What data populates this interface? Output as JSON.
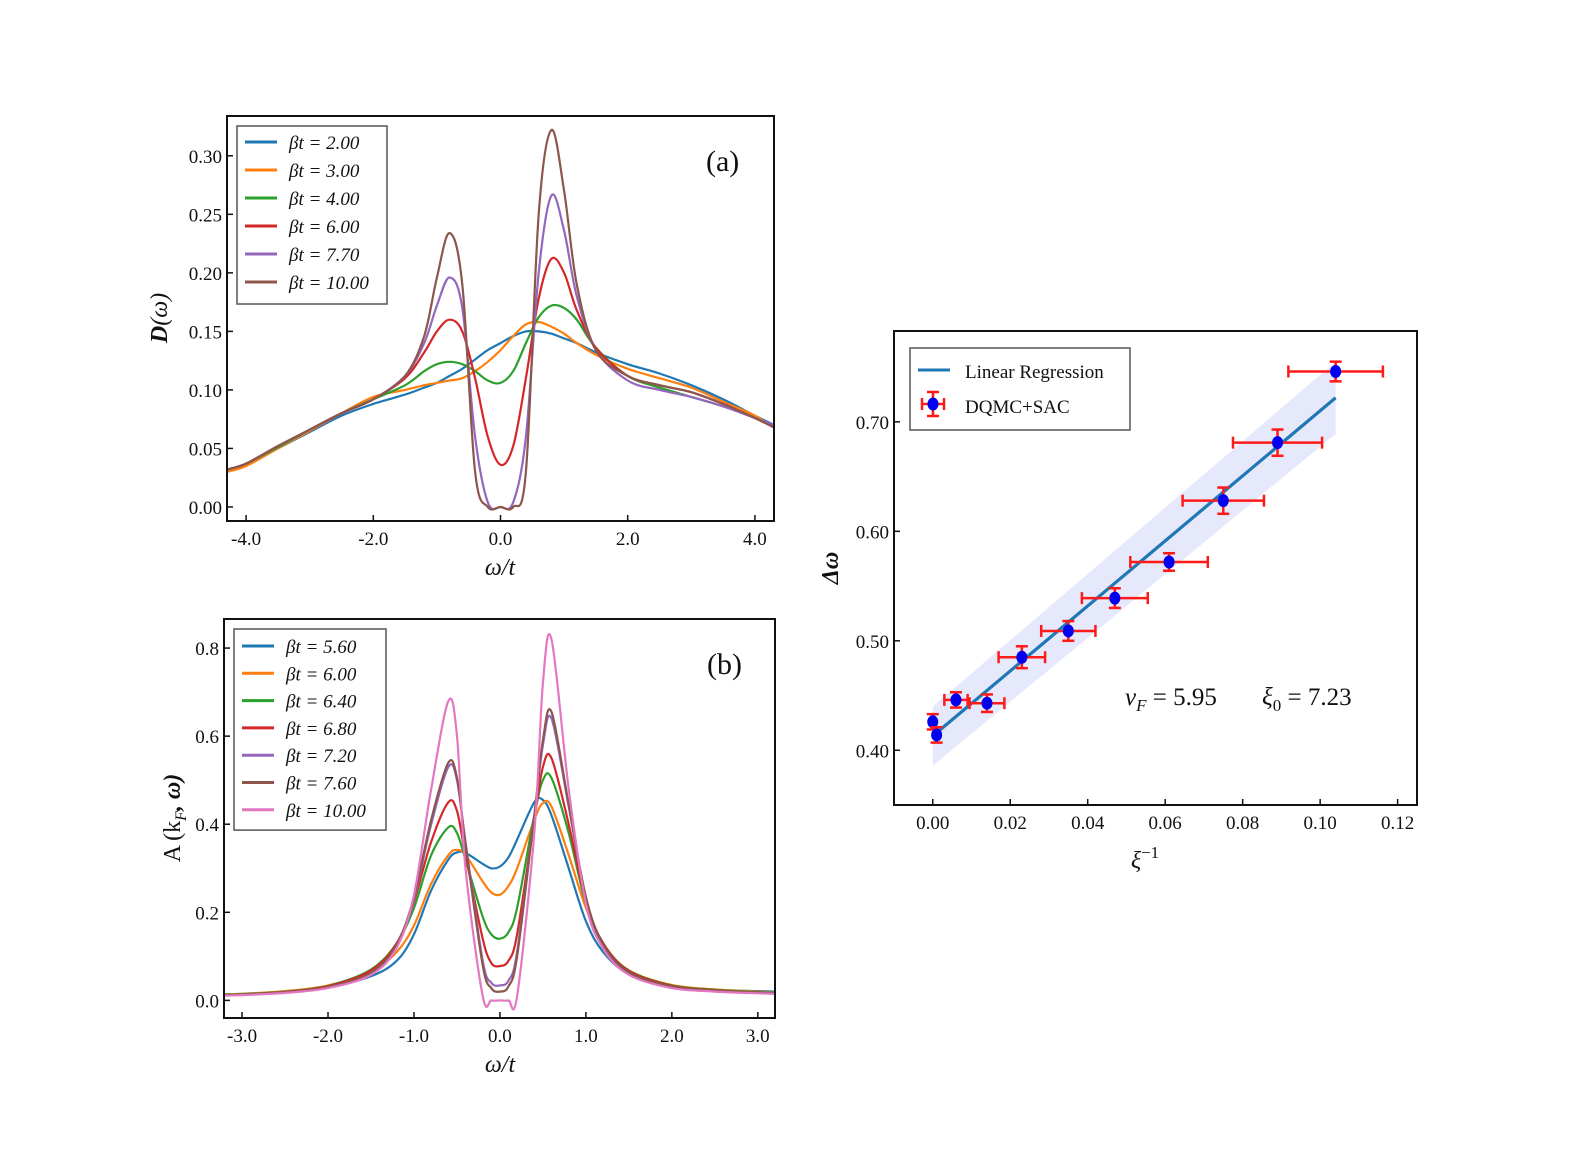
{
  "chart_data": [
    {
      "type": "line",
      "panel_label": "(a)",
      "xlabel": "ω/t",
      "ylabel": "D(ω)",
      "xlim": [
        -4.3,
        4.3
      ],
      "ylim": [
        -0.012,
        0.334
      ],
      "xticks": [
        -4.0,
        -2.0,
        0.0,
        2.0,
        4.0
      ],
      "xtick_labels": [
        "-4.0",
        "-2.0",
        "0.0",
        "2.0",
        "4.0"
      ],
      "yticks": [
        0.0,
        0.05,
        0.1,
        0.15,
        0.2,
        0.25,
        0.3
      ],
      "ytick_labels": [
        "0.00",
        "0.05",
        "0.10",
        "0.15",
        "0.20",
        "0.25",
        "0.30"
      ],
      "legend_position": "top-left",
      "x": [
        -4.3,
        -4,
        -3.5,
        -3,
        -2.5,
        -2,
        -1.5,
        -1.2,
        -1,
        -0.8,
        -0.6,
        -0.4,
        -0.2,
        0,
        0.2,
        0.4,
        0.6,
        0.8,
        1,
        1.2,
        1.5,
        2,
        2.5,
        3,
        3.5,
        4,
        4.3
      ],
      "series": [
        {
          "name": "βt = 2.00",
          "color": "#1f77b4",
          "values": [
            0.03,
            0.036,
            0.05,
            0.064,
            0.078,
            0.088,
            0.096,
            0.102,
            0.106,
            0.112,
            0.118,
            0.126,
            0.134,
            0.14,
            0.146,
            0.15,
            0.15,
            0.148,
            0.144,
            0.14,
            0.132,
            0.122,
            0.114,
            0.104,
            0.092,
            0.078,
            0.07
          ]
        },
        {
          "name": "βt = 3.00",
          "color": "#ff7f0e",
          "values": [
            0.03,
            0.035,
            0.05,
            0.065,
            0.08,
            0.094,
            0.1,
            0.104,
            0.106,
            0.108,
            0.11,
            0.116,
            0.124,
            0.134,
            0.146,
            0.156,
            0.158,
            0.154,
            0.148,
            0.14,
            0.13,
            0.118,
            0.11,
            0.102,
            0.09,
            0.078,
            0.068
          ]
        },
        {
          "name": "βt = 4.00",
          "color": "#2ca02c",
          "values": [
            0.032,
            0.037,
            0.051,
            0.066,
            0.08,
            0.092,
            0.104,
            0.116,
            0.122,
            0.124,
            0.122,
            0.116,
            0.108,
            0.106,
            0.116,
            0.14,
            0.162,
            0.172,
            0.17,
            0.16,
            0.136,
            0.112,
            0.102,
            0.094,
            0.086,
            0.076,
            0.068
          ]
        },
        {
          "name": "βt = 6.00",
          "color": "#d62728",
          "values": [
            0.032,
            0.037,
            0.052,
            0.066,
            0.08,
            0.092,
            0.11,
            0.132,
            0.15,
            0.16,
            0.15,
            0.11,
            0.06,
            0.036,
            0.052,
            0.11,
            0.178,
            0.212,
            0.2,
            0.168,
            0.136,
            0.112,
            0.104,
            0.098,
            0.088,
            0.076,
            0.068
          ]
        },
        {
          "name": "βt = 7.70",
          "color": "#9467bd",
          "values": [
            0.032,
            0.037,
            0.052,
            0.066,
            0.08,
            0.092,
            0.112,
            0.14,
            0.172,
            0.196,
            0.17,
            0.06,
            0.004,
            0.0,
            0.004,
            0.06,
            0.2,
            0.266,
            0.236,
            0.18,
            0.134,
            0.108,
            0.1,
            0.094,
            0.086,
            0.076,
            0.07
          ]
        },
        {
          "name": "βt = 10.00",
          "color": "#8c564b",
          "values": [
            0.032,
            0.037,
            0.052,
            0.066,
            0.08,
            0.092,
            0.112,
            0.146,
            0.196,
            0.234,
            0.19,
            0.03,
            0.0,
            0.0,
            0.0,
            0.03,
            0.25,
            0.322,
            0.27,
            0.19,
            0.134,
            0.112,
            0.104,
            0.098,
            0.088,
            0.076,
            0.068
          ]
        }
      ]
    },
    {
      "type": "line",
      "panel_label": "(b)",
      "xlabel": "ω/t",
      "ylabel": "A(k_F, ω)",
      "xlim": [
        -3.21,
        3.2
      ],
      "ylim": [
        -0.04,
        0.866
      ],
      "xticks": [
        -3.0,
        -2.0,
        -1.0,
        0.0,
        1.0,
        2.0,
        3.0
      ],
      "xtick_labels": [
        "-3.0",
        "-2.0",
        "-1.0",
        "0.0",
        "1.0",
        "2.0",
        "3.0"
      ],
      "yticks": [
        0.0,
        0.2,
        0.4,
        0.6,
        0.8
      ],
      "ytick_labels": [
        "0.0",
        "0.2",
        "0.4",
        "0.6",
        "0.8"
      ],
      "legend_position": "top-left",
      "x": [
        -3.2,
        -3,
        -2.5,
        -2,
        -1.5,
        -1.2,
        -1,
        -0.8,
        -0.6,
        -0.5,
        -0.4,
        -0.2,
        -0.1,
        0,
        0.1,
        0.2,
        0.4,
        0.5,
        0.6,
        0.8,
        1,
        1.2,
        1.5,
        2,
        2.5,
        3,
        3.2
      ],
      "series": [
        {
          "name": "βt = 5.60",
          "color": "#1f77b4",
          "values": [
            0.014,
            0.015,
            0.02,
            0.03,
            0.055,
            0.09,
            0.15,
            0.25,
            0.32,
            0.336,
            0.335,
            0.31,
            0.3,
            0.304,
            0.325,
            0.365,
            0.45,
            0.455,
            0.42,
            0.3,
            0.18,
            0.11,
            0.06,
            0.032,
            0.024,
            0.021,
            0.02
          ]
        },
        {
          "name": "βt = 6.00",
          "color": "#ff7f0e",
          "values": [
            0.014,
            0.015,
            0.021,
            0.034,
            0.065,
            0.11,
            0.17,
            0.265,
            0.33,
            0.342,
            0.33,
            0.27,
            0.245,
            0.24,
            0.26,
            0.3,
            0.41,
            0.448,
            0.44,
            0.33,
            0.21,
            0.125,
            0.068,
            0.035,
            0.025,
            0.02,
            0.018
          ]
        },
        {
          "name": "βt = 6.40",
          "color": "#2ca02c",
          "values": [
            0.013,
            0.014,
            0.02,
            0.033,
            0.07,
            0.13,
            0.21,
            0.33,
            0.393,
            0.38,
            0.32,
            0.19,
            0.15,
            0.14,
            0.155,
            0.21,
            0.42,
            0.5,
            0.505,
            0.38,
            0.22,
            0.13,
            0.068,
            0.034,
            0.024,
            0.019,
            0.017
          ]
        },
        {
          "name": "βt = 6.80",
          "color": "#d62728",
          "values": [
            0.012,
            0.013,
            0.019,
            0.032,
            0.068,
            0.13,
            0.225,
            0.36,
            0.45,
            0.43,
            0.33,
            0.14,
            0.085,
            0.078,
            0.09,
            0.15,
            0.41,
            0.53,
            0.55,
            0.4,
            0.225,
            0.13,
            0.067,
            0.033,
            0.023,
            0.018,
            0.016
          ]
        },
        {
          "name": "βt = 7.20",
          "color": "#9467bd",
          "values": [
            0.012,
            0.013,
            0.018,
            0.03,
            0.062,
            0.125,
            0.23,
            0.4,
            0.53,
            0.5,
            0.36,
            0.09,
            0.04,
            0.034,
            0.045,
            0.11,
            0.42,
            0.58,
            0.64,
            0.44,
            0.23,
            0.125,
            0.063,
            0.031,
            0.022,
            0.018,
            0.016
          ]
        },
        {
          "name": "βt = 7.60",
          "color": "#8c564b",
          "values": [
            0.012,
            0.013,
            0.018,
            0.03,
            0.063,
            0.128,
            0.235,
            0.41,
            0.54,
            0.505,
            0.355,
            0.08,
            0.028,
            0.02,
            0.032,
            0.1,
            0.42,
            0.59,
            0.655,
            0.445,
            0.235,
            0.128,
            0.064,
            0.031,
            0.022,
            0.018,
            0.016
          ]
        },
        {
          "name": "βt = 10.00",
          "color": "#e377c2",
          "values": [
            0.011,
            0.012,
            0.017,
            0.028,
            0.058,
            0.12,
            0.24,
            0.48,
            0.68,
            0.6,
            0.3,
            0.01,
            0.0,
            0.0,
            0.0,
            0.01,
            0.38,
            0.72,
            0.82,
            0.48,
            0.22,
            0.118,
            0.058,
            0.028,
            0.02,
            0.016,
            0.015
          ]
        }
      ]
    },
    {
      "type": "scatter",
      "xlabel": "ξ⁻¹",
      "ylabel": "Δω",
      "xlim": [
        -0.01,
        0.125
      ],
      "ylim": [
        0.35,
        0.783
      ],
      "xticks": [
        0.0,
        0.02,
        0.04,
        0.06,
        0.08,
        0.1,
        0.12
      ],
      "xtick_labels": [
        "0.00",
        "0.02",
        "0.04",
        "0.06",
        "0.08",
        "0.10",
        "0.12"
      ],
      "yticks": [
        0.4,
        0.5,
        0.6,
        0.7
      ],
      "ytick_labels": [
        "0.40",
        "0.50",
        "0.60",
        "0.70"
      ],
      "legend_position": "top-left",
      "legend": [
        "Linear Regression",
        "DQMC+SAC"
      ],
      "annotations": {
        "vF": "v_F = 5.95",
        "xi0": "ξ_0 = 7.23"
      },
      "regression": {
        "x": [
          0.0,
          0.104
        ],
        "y": [
          0.413,
          0.722
        ],
        "band_lower": [
          0.386,
          0.689
        ],
        "band_upper": [
          0.44,
          0.755
        ],
        "color": "#1f77b4",
        "band_color": "#e6e8fb"
      },
      "points": {
        "color": "#0000ee",
        "err_color": "#ff1a1a",
        "x": [
          0.0,
          0.001,
          0.006,
          0.014,
          0.023,
          0.035,
          0.047,
          0.061,
          0.075,
          0.089,
          0.104
        ],
        "y": [
          0.426,
          0.414,
          0.446,
          0.443,
          0.485,
          0.509,
          0.539,
          0.572,
          0.628,
          0.681,
          0.746
        ],
        "xerr": [
          0.0,
          0.0,
          0.003,
          0.0045,
          0.006,
          0.007,
          0.0085,
          0.01,
          0.0105,
          0.0115,
          0.0122
        ],
        "yerr": [
          0.007,
          0.007,
          0.007,
          0.008,
          0.01,
          0.009,
          0.009,
          0.008,
          0.012,
          0.012,
          0.009
        ]
      }
    }
  ],
  "labels": {
    "a_ylabel_main": "D",
    "a_ylabel_arg": "(ω)",
    "b_ylabel_main": "A",
    "b_ylabel_arg": "(k",
    "b_ylabel_sub": "F",
    "b_ylabel_rest": ", ω)",
    "xlabel_w": "ω/t",
    "c_ylabel": "Δω",
    "c_xlabel_base": "ξ",
    "c_xlabel_sup": "−1",
    "vF_sym": "v",
    "vF_sub": "F",
    "vF_val": " = 5.95",
    "xi0_sym": "ξ",
    "xi0_sub": "0",
    "xi0_val": " = 7.23"
  }
}
